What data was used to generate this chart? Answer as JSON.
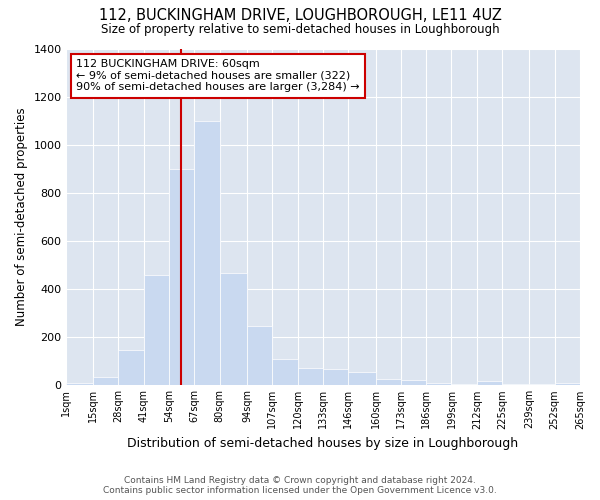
{
  "title": "112, BUCKINGHAM DRIVE, LOUGHBOROUGH, LE11 4UZ",
  "subtitle": "Size of property relative to semi-detached houses in Loughborough",
  "xlabel": "Distribution of semi-detached houses by size in Loughborough",
  "ylabel": "Number of semi-detached properties",
  "footer_line1": "Contains HM Land Registry data © Crown copyright and database right 2024.",
  "footer_line2": "Contains public sector information licensed under the Open Government Licence v3.0.",
  "bar_color": "#c9d9f0",
  "bar_edgecolor": "#c9d9f0",
  "vline_color": "#cc0000",
  "vline_value": 60,
  "annotation_line1": "112 BUCKINGHAM DRIVE: 60sqm",
  "annotation_line2": "← 9% of semi-detached houses are smaller (322)",
  "annotation_line3": "90% of semi-detached houses are larger (3,284) →",
  "annotation_box_color": "#cc0000",
  "bins": [
    1,
    15,
    28,
    41,
    54,
    67,
    80,
    94,
    107,
    120,
    133,
    146,
    160,
    173,
    186,
    199,
    212,
    225,
    239,
    252,
    265
  ],
  "bin_labels": [
    "1sqm",
    "15sqm",
    "28sqm",
    "41sqm",
    "54sqm",
    "67sqm",
    "80sqm",
    "94sqm",
    "107sqm",
    "120sqm",
    "133sqm",
    "146sqm",
    "160sqm",
    "173sqm",
    "186sqm",
    "199sqm",
    "212sqm",
    "225sqm",
    "239sqm",
    "252sqm",
    "265sqm"
  ],
  "counts": [
    10,
    35,
    145,
    460,
    900,
    1100,
    465,
    245,
    110,
    70,
    65,
    55,
    25,
    20,
    10,
    5,
    15,
    5,
    5,
    10
  ],
  "ylim": [
    0,
    1400
  ],
  "plot_background": "#dde5f0"
}
